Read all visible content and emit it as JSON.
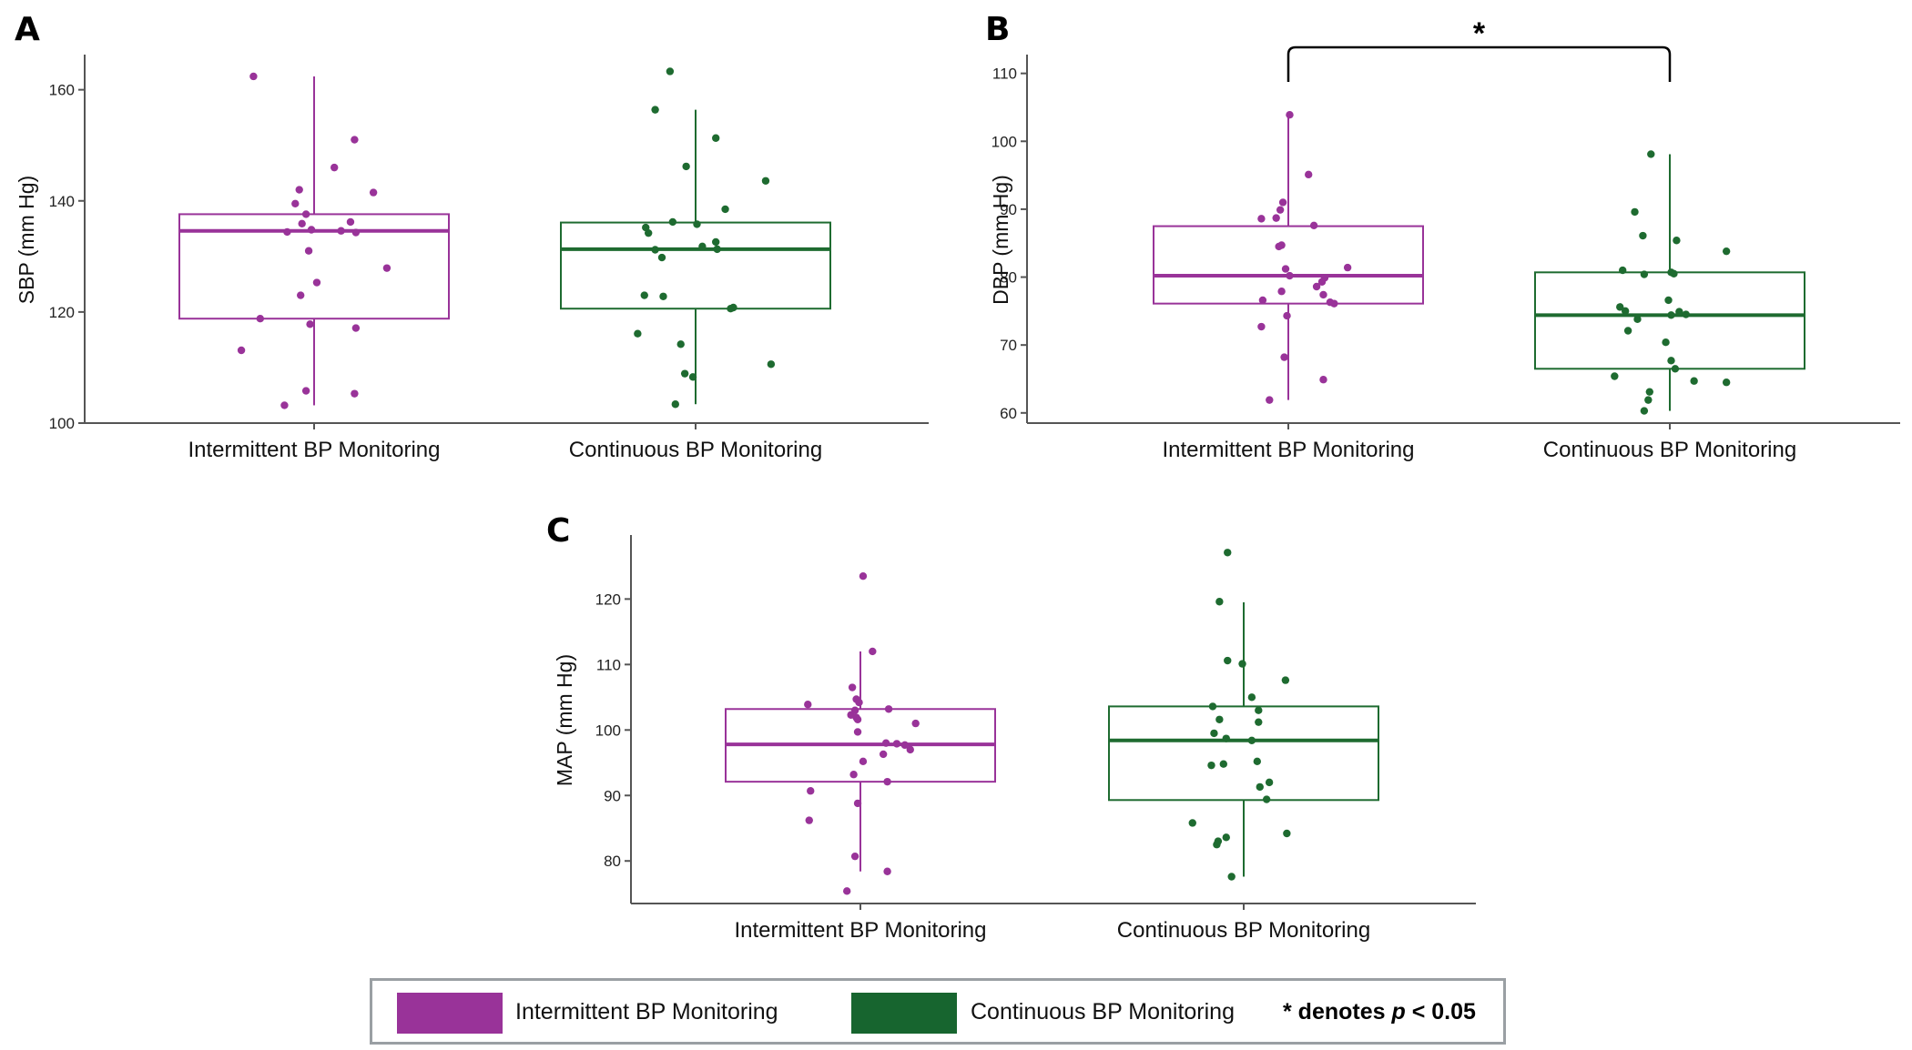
{
  "colors": {
    "intermittent": "#993399",
    "continuous": "#1e6b30",
    "continuous_legend": "#17652f",
    "axis": "#555555"
  },
  "chart_data": [
    {
      "id": "A",
      "panel_label": "A",
      "type": "box",
      "ylabel": "SBP (mm Hg)",
      "ylim": [
        100,
        166
      ],
      "yticks": [
        100,
        120,
        140,
        160
      ],
      "categories": [
        "Intermittent BP Monitoring",
        "Continuous BP Monitoring"
      ],
      "series": [
        {
          "name": "Intermittent BP Monitoring",
          "color_key": "intermittent",
          "box": {
            "q1": 118.8,
            "median": 134.6,
            "q3": 137.6,
            "whisker_low": 103.2,
            "whisker_high": 162.4
          },
          "points": [
            [
              -0.45,
              162.4
            ],
            [
              0.3,
              151
            ],
            [
              0.15,
              146
            ],
            [
              -0.11,
              142
            ],
            [
              0.44,
              141.5
            ],
            [
              -0.14,
              139.5
            ],
            [
              -0.06,
              137.6
            ],
            [
              0.27,
              136.2
            ],
            [
              -0.09,
              135.9
            ],
            [
              -0.02,
              134.8
            ],
            [
              0.2,
              134.6
            ],
            [
              -0.2,
              134.4
            ],
            [
              0.31,
              134.3
            ],
            [
              -0.04,
              131
            ],
            [
              0.54,
              127.9
            ],
            [
              0.02,
              125.3
            ],
            [
              -0.1,
              123
            ],
            [
              -0.4,
              118.8
            ],
            [
              -0.03,
              117.8
            ],
            [
              0.31,
              117.1
            ],
            [
              -0.54,
              113.1
            ],
            [
              -0.06,
              105.8
            ],
            [
              0.3,
              105.3
            ],
            [
              -0.22,
              103.2
            ]
          ]
        },
        {
          "name": "Continuous BP Monitoring",
          "color_key": "continuous",
          "box": {
            "q1": 120.6,
            "median": 131.3,
            "q3": 136.1,
            "whisker_low": 103.4,
            "whisker_high": 156.4
          },
          "points": [
            [
              -0.19,
              163.3
            ],
            [
              -0.3,
              156.4
            ],
            [
              0.15,
              151.3
            ],
            [
              -0.07,
              146.2
            ],
            [
              0.52,
              143.6
            ],
            [
              0.22,
              138.5
            ],
            [
              -0.17,
              136.2
            ],
            [
              0.01,
              135.8
            ],
            [
              -0.37,
              135.2
            ],
            [
              -0.35,
              134.2
            ],
            [
              0.15,
              132.6
            ],
            [
              0.05,
              131.8
            ],
            [
              0.16,
              131.3
            ],
            [
              -0.3,
              131.2
            ],
            [
              -0.25,
              129.8
            ],
            [
              -0.38,
              123
            ],
            [
              -0.24,
              122.8
            ],
            [
              0.28,
              120.8
            ],
            [
              0.26,
              120.6
            ],
            [
              -0.43,
              116.1
            ],
            [
              -0.11,
              114.2
            ],
            [
              0.56,
              110.6
            ],
            [
              -0.08,
              108.9
            ],
            [
              -0.02,
              108.3
            ],
            [
              -0.15,
              103.4
            ]
          ]
        }
      ]
    },
    {
      "id": "B",
      "panel_label": "B",
      "type": "box",
      "ylabel": "DBP (mm Hg)",
      "ylim": [
        58.5,
        112.5
      ],
      "yticks": [
        60,
        70,
        80,
        90,
        100,
        110
      ],
      "categories": [
        "Intermittent BP Monitoring",
        "Continuous BP Monitoring"
      ],
      "significance": {
        "label": "*",
        "between": [
          0,
          1
        ],
        "y": 112
      },
      "series": [
        {
          "name": "Intermittent BP Monitoring",
          "color_key": "intermittent",
          "box": {
            "q1": 76.1,
            "median": 80.2,
            "q3": 87.5,
            "whisker_low": 61.9,
            "whisker_high": 103.9
          },
          "points": [
            [
              0.01,
              103.9
            ],
            [
              0.15,
              95.1
            ],
            [
              -0.04,
              91
            ],
            [
              -0.06,
              89.9
            ],
            [
              -0.09,
              88.7
            ],
            [
              -0.2,
              88.6
            ],
            [
              0.19,
              87.6
            ],
            [
              -0.05,
              84.7
            ],
            [
              -0.07,
              84.5
            ],
            [
              0.44,
              81.4
            ],
            [
              -0.02,
              81.2
            ],
            [
              0.01,
              80.2
            ],
            [
              0.27,
              79.9
            ],
            [
              0.25,
              79.3
            ],
            [
              0.21,
              78.6
            ],
            [
              -0.05,
              77.9
            ],
            [
              0.26,
              77.4
            ],
            [
              -0.19,
              76.6
            ],
            [
              0.31,
              76.3
            ],
            [
              0.34,
              76.1
            ],
            [
              -0.01,
              74.3
            ],
            [
              -0.2,
              72.7
            ],
            [
              -0.03,
              68.2
            ],
            [
              0.26,
              64.9
            ],
            [
              -0.14,
              61.9
            ]
          ]
        },
        {
          "name": "Continuous BP Monitoring",
          "color_key": "continuous",
          "box": {
            "q1": 66.5,
            "median": 74.4,
            "q3": 80.7,
            "whisker_low": 60.3,
            "whisker_high": 98.1
          },
          "points": [
            [
              -0.14,
              98.1
            ],
            [
              -0.26,
              89.6
            ],
            [
              -0.2,
              86.1
            ],
            [
              0.05,
              85.4
            ],
            [
              0.42,
              83.8
            ],
            [
              -0.35,
              81
            ],
            [
              0.01,
              80.7
            ],
            [
              0.03,
              80.5
            ],
            [
              -0.19,
              80.4
            ],
            [
              -0.37,
              75.6
            ],
            [
              -0.33,
              75
            ],
            [
              0.07,
              74.9
            ],
            [
              0.12,
              74.5
            ],
            [
              -0.24,
              73.8
            ],
            [
              0.01,
              74.4
            ],
            [
              -0.01,
              76.6
            ],
            [
              -0.31,
              72.1
            ],
            [
              -0.03,
              70.4
            ],
            [
              0.01,
              67.7
            ],
            [
              0.04,
              66.5
            ],
            [
              -0.41,
              65.4
            ],
            [
              0.18,
              64.7
            ],
            [
              0.42,
              64.5
            ],
            [
              -0.15,
              63.1
            ],
            [
              -0.16,
              61.9
            ],
            [
              -0.19,
              60.3
            ]
          ]
        }
      ]
    },
    {
      "id": "C",
      "panel_label": "C",
      "type": "box",
      "ylabel": "MAP (mm Hg)",
      "ylim": [
        73.5,
        129.5
      ],
      "yticks": [
        80,
        90,
        100,
        110,
        120
      ],
      "categories": [
        "Intermittent BP Monitoring",
        "Continuous BP Monitoring"
      ],
      "series": [
        {
          "name": "Intermittent BP Monitoring",
          "color_key": "intermittent",
          "box": {
            "q1": 92.1,
            "median": 97.8,
            "q3": 103.2,
            "whisker_low": 78.4,
            "whisker_high": 112
          },
          "points": [
            [
              0.02,
              123.5
            ],
            [
              0.09,
              112
            ],
            [
              -0.06,
              106.5
            ],
            [
              -0.03,
              104.7
            ],
            [
              -0.01,
              104.2
            ],
            [
              -0.39,
              103.9
            ],
            [
              -0.04,
              103
            ],
            [
              0.21,
              103.2
            ],
            [
              -0.07,
              102.3
            ],
            [
              -0.03,
              101.9
            ],
            [
              -0.02,
              101.6
            ],
            [
              0.41,
              101
            ],
            [
              -0.02,
              99.7
            ],
            [
              0.19,
              98
            ],
            [
              0.27,
              97.9
            ],
            [
              0.33,
              97.7
            ],
            [
              0.37,
              97
            ],
            [
              0.17,
              96.3
            ],
            [
              0.02,
              95.2
            ],
            [
              -0.05,
              93.2
            ],
            [
              0.2,
              92.1
            ],
            [
              -0.37,
              90.7
            ],
            [
              -0.02,
              88.8
            ],
            [
              -0.38,
              86.2
            ],
            [
              -0.04,
              80.7
            ],
            [
              0.2,
              78.4
            ],
            [
              -0.1,
              75.4
            ]
          ]
        },
        {
          "name": "Continuous BP Monitoring",
          "color_key": "continuous",
          "box": {
            "q1": 89.3,
            "median": 98.4,
            "q3": 103.6,
            "whisker_low": 77.6,
            "whisker_high": 119.5
          },
          "points": [
            [
              -0.12,
              127.1
            ],
            [
              -0.18,
              119.6
            ],
            [
              -0.12,
              110.6
            ],
            [
              -0.01,
              110.1
            ],
            [
              0.31,
              107.6
            ],
            [
              0.06,
              105
            ],
            [
              0.11,
              103
            ],
            [
              -0.23,
              103.6
            ],
            [
              -0.18,
              101.6
            ],
            [
              -0.22,
              99.5
            ],
            [
              0.11,
              101.2
            ],
            [
              -0.13,
              98.7
            ],
            [
              0.06,
              98.4
            ],
            [
              -0.24,
              94.6
            ],
            [
              -0.15,
              94.8
            ],
            [
              0.1,
              95.2
            ],
            [
              0.19,
              92
            ],
            [
              0.12,
              91.3
            ],
            [
              0.17,
              89.4
            ],
            [
              0.32,
              84.2
            ],
            [
              -0.13,
              83.6
            ],
            [
              -0.19,
              83
            ],
            [
              -0.2,
              82.5
            ],
            [
              -0.38,
              85.8
            ],
            [
              -0.09,
              77.6
            ]
          ]
        }
      ]
    }
  ],
  "legend": {
    "items": [
      {
        "label": "Intermittent BP Monitoring",
        "color_key": "intermittent"
      },
      {
        "label": "Continuous BP Monitoring",
        "color_key": "continuous_legend"
      }
    ],
    "note_prefix": "* denotes ",
    "note_var": "p",
    "note_suffix": " < 0.05"
  }
}
